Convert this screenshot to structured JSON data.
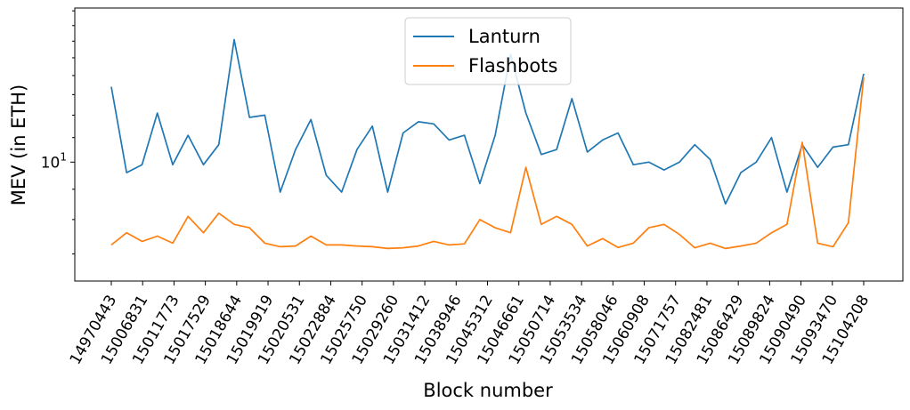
{
  "chart_data": {
    "type": "line",
    "xlabel": "Block number",
    "ylabel": "MEV (in ETH)",
    "yscale": "log",
    "ylim": [
      6.3,
      18.2
    ],
    "yticks": [
      {
        "value": 10,
        "base": "10",
        "exp": "1"
      }
    ],
    "grid": false,
    "legend_position": "top-center",
    "xtick_labels": [
      "14970443",
      "15006831",
      "15011773",
      "15017529",
      "15018644",
      "15019919",
      "15020531",
      "15022884",
      "15025750",
      "15029260",
      "15031412",
      "15038946",
      "15045312",
      "15046661",
      "15050714",
      "15053534",
      "15058046",
      "15060908",
      "15071757",
      "15082481",
      "15086429",
      "15089824",
      "15090490",
      "15093470",
      "15104208"
    ],
    "series": [
      {
        "name": "Lanturn",
        "color": "#1f77b4",
        "values": [
          13.4,
          9.6,
          9.9,
          12.1,
          9.9,
          11.1,
          9.9,
          10.7,
          16.1,
          11.9,
          12.0,
          8.9,
          10.5,
          11.8,
          9.5,
          8.9,
          10.5,
          11.5,
          8.9,
          11.2,
          11.7,
          11.6,
          10.9,
          11.1,
          9.2,
          11.1,
          15.2,
          12.1,
          10.3,
          10.5,
          12.8,
          10.4,
          10.9,
          11.2,
          9.9,
          10.0,
          9.7,
          10.0,
          10.7,
          10.1,
          8.5,
          9.6,
          10.0,
          11.0,
          8.9,
          10.7,
          9.8,
          10.6,
          10.7,
          14.1
        ]
      },
      {
        "name": "Flashbots",
        "color": "#ff7f0e",
        "values": [
          7.25,
          7.6,
          7.35,
          7.5,
          7.3,
          8.1,
          7.6,
          8.2,
          7.85,
          7.75,
          7.3,
          7.2,
          7.22,
          7.5,
          7.25,
          7.25,
          7.22,
          7.2,
          7.15,
          7.17,
          7.22,
          7.35,
          7.25,
          7.28,
          8.0,
          7.75,
          7.6,
          9.8,
          7.85,
          8.1,
          7.85,
          7.22,
          7.43,
          7.18,
          7.3,
          7.75,
          7.85,
          7.55,
          7.17,
          7.3,
          7.15,
          7.22,
          7.3,
          7.6,
          7.85,
          10.8,
          7.3,
          7.2,
          7.9,
          13.9
        ]
      }
    ]
  }
}
